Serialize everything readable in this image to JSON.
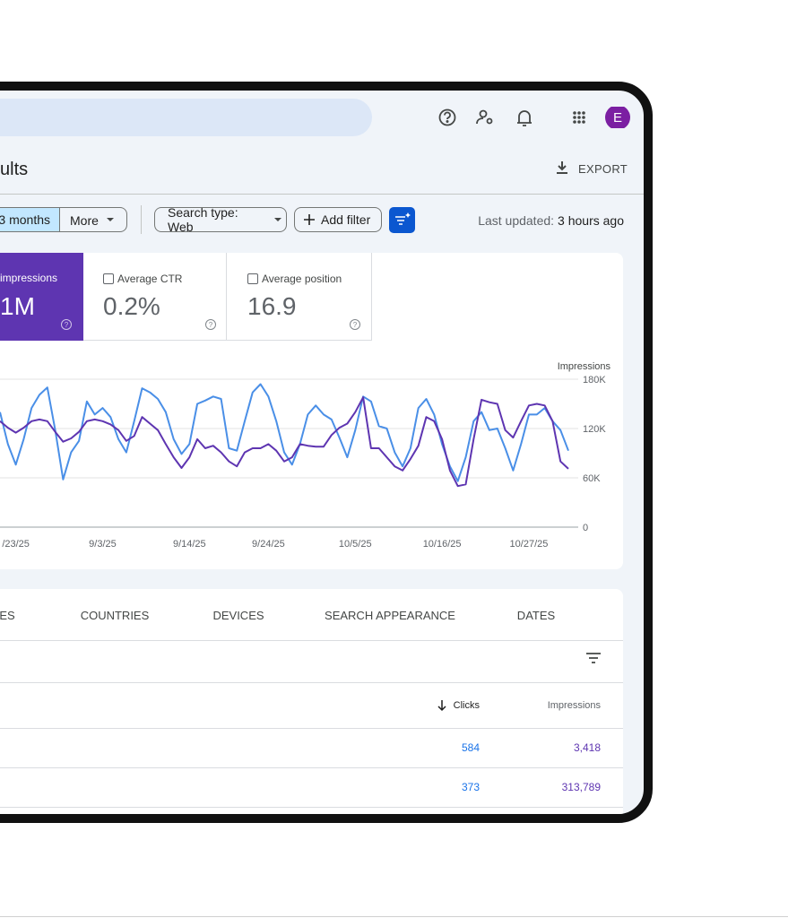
{
  "header": {
    "page_title": "ults",
    "export": "EXPORT",
    "avatar": "E"
  },
  "filters": {
    "date_range": "3 months",
    "more": "More",
    "search_type": "Search type: Web",
    "add_filter": "Add filter",
    "last_updated_label": "Last updated:",
    "last_updated_value": "3 hours ago"
  },
  "metrics": [
    {
      "label": "impressions",
      "value": "1M"
    },
    {
      "label": "Average CTR",
      "value": "0.2%"
    },
    {
      "label": "Average position",
      "value": "16.9"
    }
  ],
  "chart_data": {
    "type": "line",
    "y_label": "Impressions",
    "categories": [
      null,
      null,
      "/23/25",
      null,
      null,
      null,
      null,
      null,
      null,
      null,
      null,
      null,
      null,
      "9/3/25",
      null,
      null,
      null,
      null,
      null,
      null,
      null,
      null,
      null,
      null,
      "9/14/25",
      null,
      null,
      null,
      null,
      null,
      null,
      null,
      null,
      null,
      "9/24/25",
      null,
      null,
      null,
      null,
      null,
      null,
      null,
      null,
      null,
      null,
      "10/5/25",
      null,
      null,
      null,
      null,
      null,
      null,
      null,
      null,
      null,
      null,
      "10/16/25",
      null,
      null,
      null,
      null,
      null,
      null,
      null,
      null,
      null,
      null,
      "10/27/25",
      null,
      null,
      null,
      null,
      null
    ],
    "series": [
      {
        "color": "#4a8fe7",
        "values": [
          140000,
          101000,
          76000,
          107000,
          145000,
          161000,
          170000,
          118000,
          58000,
          91000,
          105000,
          153000,
          137000,
          145000,
          134000,
          107000,
          91000,
          129000,
          169000,
          164000,
          156000,
          140000,
          107000,
          89000,
          101000,
          150000,
          154000,
          159000,
          156000,
          96000,
          93000,
          129000,
          164000,
          174000,
          159000,
          129000,
          91000,
          76000,
          101000,
          137000,
          148000,
          137000,
          131000,
          109000,
          85000,
          118000,
          159000,
          153000,
          123000,
          120000,
          91000,
          74000,
          96000,
          145000,
          156000,
          137000,
          101000,
          74000,
          56000,
          85000,
          129000,
          140000,
          118000,
          120000,
          96000,
          69000,
          101000,
          137000,
          137000,
          145000,
          129000,
          118000,
          93000
        ]
      },
      {
        "color": "#5e35b1",
        "values": [
          129000,
          121000,
          115000,
          121000,
          129000,
          131000,
          129000,
          116000,
          104000,
          108000,
          116000,
          129000,
          131000,
          129000,
          125000,
          118000,
          105000,
          111000,
          134000,
          126000,
          118000,
          101000,
          85000,
          72000,
          85000,
          107000,
          96000,
          99000,
          91000,
          80000,
          74000,
          91000,
          96000,
          96000,
          101000,
          93000,
          80000,
          85000,
          101000,
          99000,
          98000,
          98000,
          112000,
          121000,
          126000,
          140000,
          158000,
          96000,
          96000,
          85000,
          74000,
          69000,
          83000,
          99000,
          134000,
          129000,
          107000,
          69000,
          50000,
          52000,
          107000,
          155000,
          152000,
          150000,
          118000,
          109000,
          129000,
          148000,
          150000,
          148000,
          129000,
          80000,
          71000
        ]
      }
    ],
    "ylim": [
      0,
      180000
    ],
    "yticks": [
      0,
      {
        "value": 60000,
        "label": "60K"
      },
      {
        "value": 120000,
        "label": "120K"
      },
      {
        "value": 180000,
        "label": "180K"
      }
    ],
    "grid": true
  },
  "tabs": [
    "ES",
    "COUNTRIES",
    "DEVICES",
    "SEARCH APPEARANCE",
    "DATES"
  ],
  "table": {
    "columns": [
      "Clicks",
      "Impressions"
    ],
    "rows": [
      [
        "584",
        "3,418"
      ],
      [
        "373",
        "313,789"
      ]
    ]
  }
}
